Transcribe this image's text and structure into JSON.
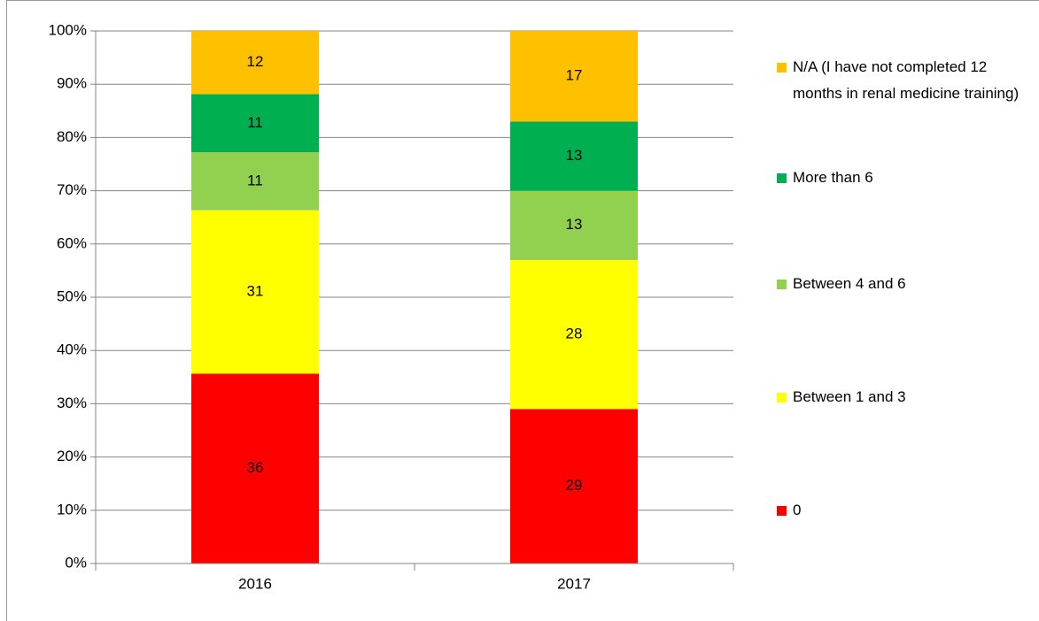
{
  "chart_data": {
    "type": "bar",
    "stacked": true,
    "categories": [
      "2016",
      "2017"
    ],
    "series": [
      {
        "name": "0",
        "color": "#ff0000",
        "values": [
          36,
          29
        ]
      },
      {
        "name": "Between 1 and 3",
        "color": "#ffff00",
        "values": [
          31,
          28
        ]
      },
      {
        "name": "Between 4 and 6",
        "color": "#92d050",
        "values": [
          11,
          13
        ]
      },
      {
        "name": "More than 6",
        "color": "#00b050",
        "values": [
          11,
          13
        ]
      },
      {
        "name": "N/A (I have not completed 12 months in renal medicine training)",
        "color": "#ffc000",
        "values": [
          12,
          17
        ]
      }
    ],
    "ylim": [
      0,
      100
    ],
    "yticks": [
      {
        "value": 0,
        "label": "0%"
      },
      {
        "value": 10,
        "label": "10%"
      },
      {
        "value": 20,
        "label": "20%"
      },
      {
        "value": 30,
        "label": "30%"
      },
      {
        "value": 40,
        "label": "40%"
      },
      {
        "value": 50,
        "label": "50%"
      },
      {
        "value": 60,
        "label": "60%"
      },
      {
        "value": 70,
        "label": "70%"
      },
      {
        "value": 80,
        "label": "80%"
      },
      {
        "value": 90,
        "label": "90%"
      },
      {
        "value": 100,
        "label": "100%"
      }
    ],
    "grid": true,
    "legend": "right"
  }
}
